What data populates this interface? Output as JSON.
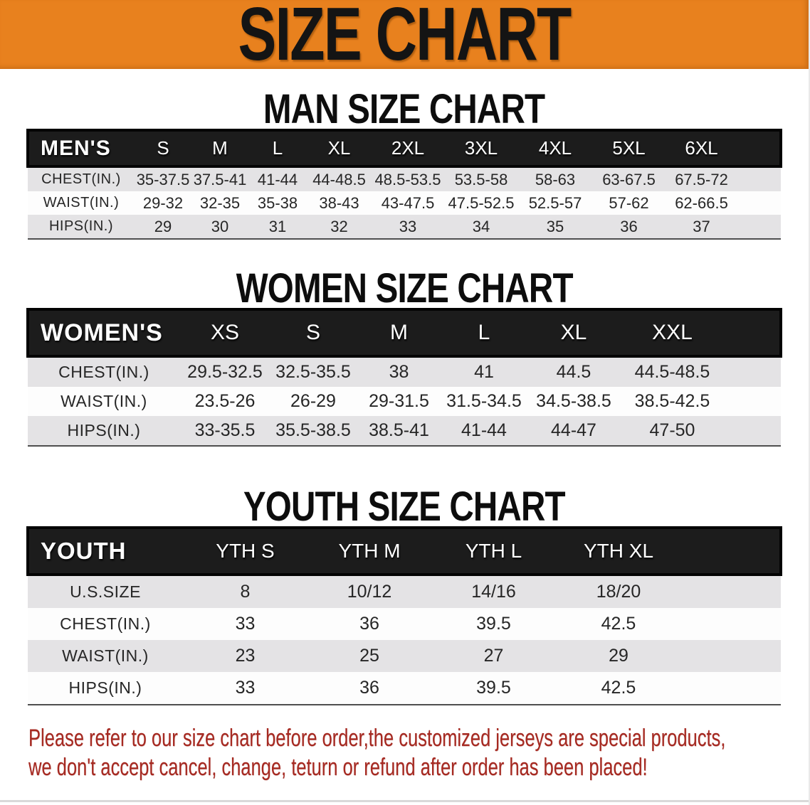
{
  "banner": {
    "title": "SIZE CHART"
  },
  "colors": {
    "banner_bg": "#E8811E",
    "header_bar_bg": "#1C1C1C",
    "row_alt_bg": "#E4E3E5",
    "disclaimer_red": "#A62A22"
  },
  "sections": {
    "men": {
      "heading": "MAN SIZE CHART",
      "table": {
        "corner_label": "MEN'S",
        "columns": [
          "S",
          "M",
          "L",
          "XL",
          "2XL",
          "3XL",
          "4XL",
          "5XL",
          "6XL"
        ],
        "rows": [
          {
            "label": "CHEST(IN.)",
            "values": [
              "35-37.5",
              "37.5-41",
              "41-44",
              "44-48.5",
              "48.5-53.5",
              "53.5-58",
              "58-63",
              "63-67.5",
              "67.5-72"
            ]
          },
          {
            "label": "WAIST(IN.)",
            "values": [
              "29-32",
              "32-35",
              "35-38",
              "38-43",
              "43-47.5",
              "47.5-52.5",
              "52.5-57",
              "57-62",
              "62-66.5"
            ]
          },
          {
            "label": "HIPS(IN.)",
            "values": [
              "29",
              "30",
              "31",
              "32",
              "33",
              "34",
              "35",
              "36",
              "37"
            ]
          }
        ]
      }
    },
    "women": {
      "heading": "WOMEN SIZE CHART",
      "table": {
        "corner_label": "WOMEN'S",
        "columns": [
          "XS",
          "S",
          "M",
          "L",
          "XL",
          "XXL"
        ],
        "rows": [
          {
            "label": "CHEST(IN.)",
            "values": [
              "29.5-32.5",
              "32.5-35.5",
              "38",
              "41",
              "44.5",
              "44.5-48.5"
            ]
          },
          {
            "label": "WAIST(IN.)",
            "values": [
              "23.5-26",
              "26-29",
              "29-31.5",
              "31.5-34.5",
              "34.5-38.5",
              "38.5-42.5"
            ]
          },
          {
            "label": "HIPS(IN.)",
            "values": [
              "33-35.5",
              "35.5-38.5",
              "38.5-41",
              "41-44",
              "44-47",
              "47-50"
            ]
          }
        ]
      }
    },
    "youth": {
      "heading": "YOUTH SIZE CHART",
      "table": {
        "corner_label": "YOUTH",
        "columns": [
          "YTH S",
          "YTH M",
          "YTH L",
          "YTH XL"
        ],
        "rows": [
          {
            "label": "U.S.SIZE",
            "values": [
              "8",
              "10/12",
              "14/16",
              "18/20"
            ]
          },
          {
            "label": "CHEST(IN.)",
            "values": [
              "33",
              "36",
              "39.5",
              "42.5"
            ]
          },
          {
            "label": "WAIST(IN.)",
            "values": [
              "23",
              "25",
              "27",
              "29"
            ]
          },
          {
            "label": "HIPS(IN.)",
            "values": [
              "33",
              "36",
              "39.5",
              "42.5"
            ]
          }
        ]
      }
    }
  },
  "disclaimer": {
    "line1": "Please refer to our size chart before order,the customized jerseys are special products,",
    "line2": "we don't accept cancel, change, teturn or refund after order has been placed!"
  }
}
